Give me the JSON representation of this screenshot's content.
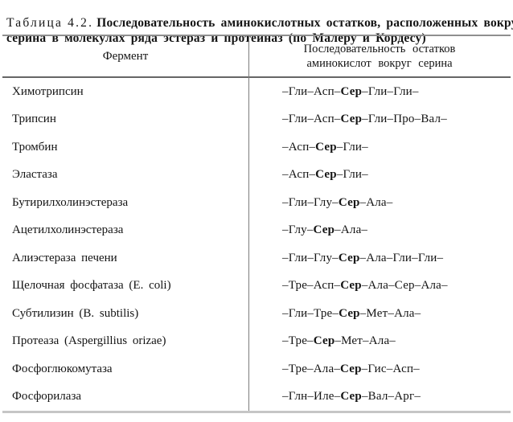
{
  "title": {
    "label": "Таблица 4.2.",
    "line1_bold": "Последовательность аминокислотных остатков, расположенных вокруг",
    "line2_bold": "серина в молекулах ряда эстераз и протеиназ (по Малеру и Кордесу)"
  },
  "table": {
    "headers": {
      "enzyme": "Фермент",
      "sequence_line1": "Последовательность остатков",
      "sequence_line2": "аминокислот вокруг серина"
    },
    "rows": [
      {
        "enzyme": "Химотрипсин",
        "seq_pre": "–Гли–Асп–",
        "seq_ser": "Сер",
        "seq_post": "–Гли–Гли–"
      },
      {
        "enzyme": "Трипсин",
        "seq_pre": "–Гли–Асп–",
        "seq_ser": "Сер",
        "seq_post": "–Гли–Про–Вал–"
      },
      {
        "enzyme": "Тромбин",
        "seq_pre": "–Асп–",
        "seq_ser": "Сер",
        "seq_post": "–Гли–"
      },
      {
        "enzyme": "Эластаза",
        "seq_pre": "–Асп–",
        "seq_ser": "Сер",
        "seq_post": "–Гли–"
      },
      {
        "enzyme": "Бутирилхолинэстераза",
        "seq_pre": "–Гли–Глу–",
        "seq_ser": "Сер",
        "seq_post": "–Ала–"
      },
      {
        "enzyme": "Ацетилхолинэстераза",
        "seq_pre": "–Глу–",
        "seq_ser": "Сер",
        "seq_post": "–Ала–"
      },
      {
        "enzyme": "Алиэстераза печени",
        "seq_pre": "–Гли–Глу–",
        "seq_ser": "Сер",
        "seq_post": "–Ала–Гли–Гли–"
      },
      {
        "enzyme": "Щелочная фосфатаза (E. coli)",
        "seq_pre": "–Тре–Асп–",
        "seq_ser": "Сер",
        "seq_post": "–Ала–Сер–Ала–"
      },
      {
        "enzyme": "Субтилизин (B. subtilis)",
        "seq_pre": "–Гли–Тре–",
        "seq_ser": "Сер",
        "seq_post": "–Мет–Ала–"
      },
      {
        "enzyme": "Протеаза (Aspergillius orizae)",
        "seq_pre": "–Тре–",
        "seq_ser": "Сер",
        "seq_post": "–Мет–Ала–"
      },
      {
        "enzyme": "Фосфоглюкомутаза",
        "seq_pre": "–Тре–Ала–",
        "seq_ser": "Сер",
        "seq_post": "–Гис–Асп–"
      },
      {
        "enzyme": "Фосфорилаза",
        "seq_pre": "–Глн–Иле–",
        "seq_ser": "Сер",
        "seq_post": "–Вал–Арг–"
      }
    ]
  },
  "colors": {
    "background": "#ffffff",
    "text": "#141414",
    "rule_top": "#8f8f8f",
    "rule_header": "#666666",
    "rule_bottom": "#c6c6c6",
    "column_divider": "#7d7d7d"
  }
}
